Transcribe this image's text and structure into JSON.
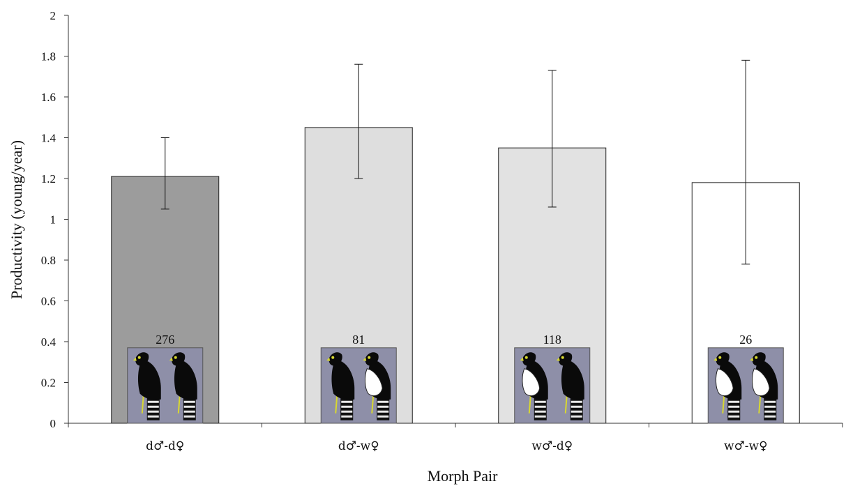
{
  "chart_data": {
    "type": "bar",
    "title": "",
    "xlabel": "Morph Pair",
    "ylabel": "Productivity (young/year)",
    "ylim": [
      0,
      2
    ],
    "yticks": [
      "0",
      "0.2",
      "0.4",
      "0.6",
      "0.8",
      "1",
      "1.2",
      "1.4",
      "1.6",
      "1.8",
      "2"
    ],
    "grid": false,
    "legend": "none",
    "categories": [
      "d♂-d♀",
      "d♂-w♀",
      "w♂-d♀",
      "w♂-w♀"
    ],
    "values": [
      1.21,
      1.45,
      1.35,
      1.18
    ],
    "error_low": [
      1.05,
      1.2,
      1.06,
      0.78
    ],
    "error_high": [
      1.4,
      1.76,
      1.73,
      1.78
    ],
    "sample_sizes": [
      "276",
      "81",
      "118",
      "26"
    ],
    "bar_colors": [
      "#9c9c9c",
      "#dedede",
      "#e2e2e2",
      "#ffffff"
    ],
    "icon_morphs": [
      [
        "dark",
        "dark"
      ],
      [
        "dark",
        "white"
      ],
      [
        "white",
        "dark"
      ],
      [
        "white",
        "white"
      ]
    ],
    "icon_background": "#8e8fa8"
  }
}
